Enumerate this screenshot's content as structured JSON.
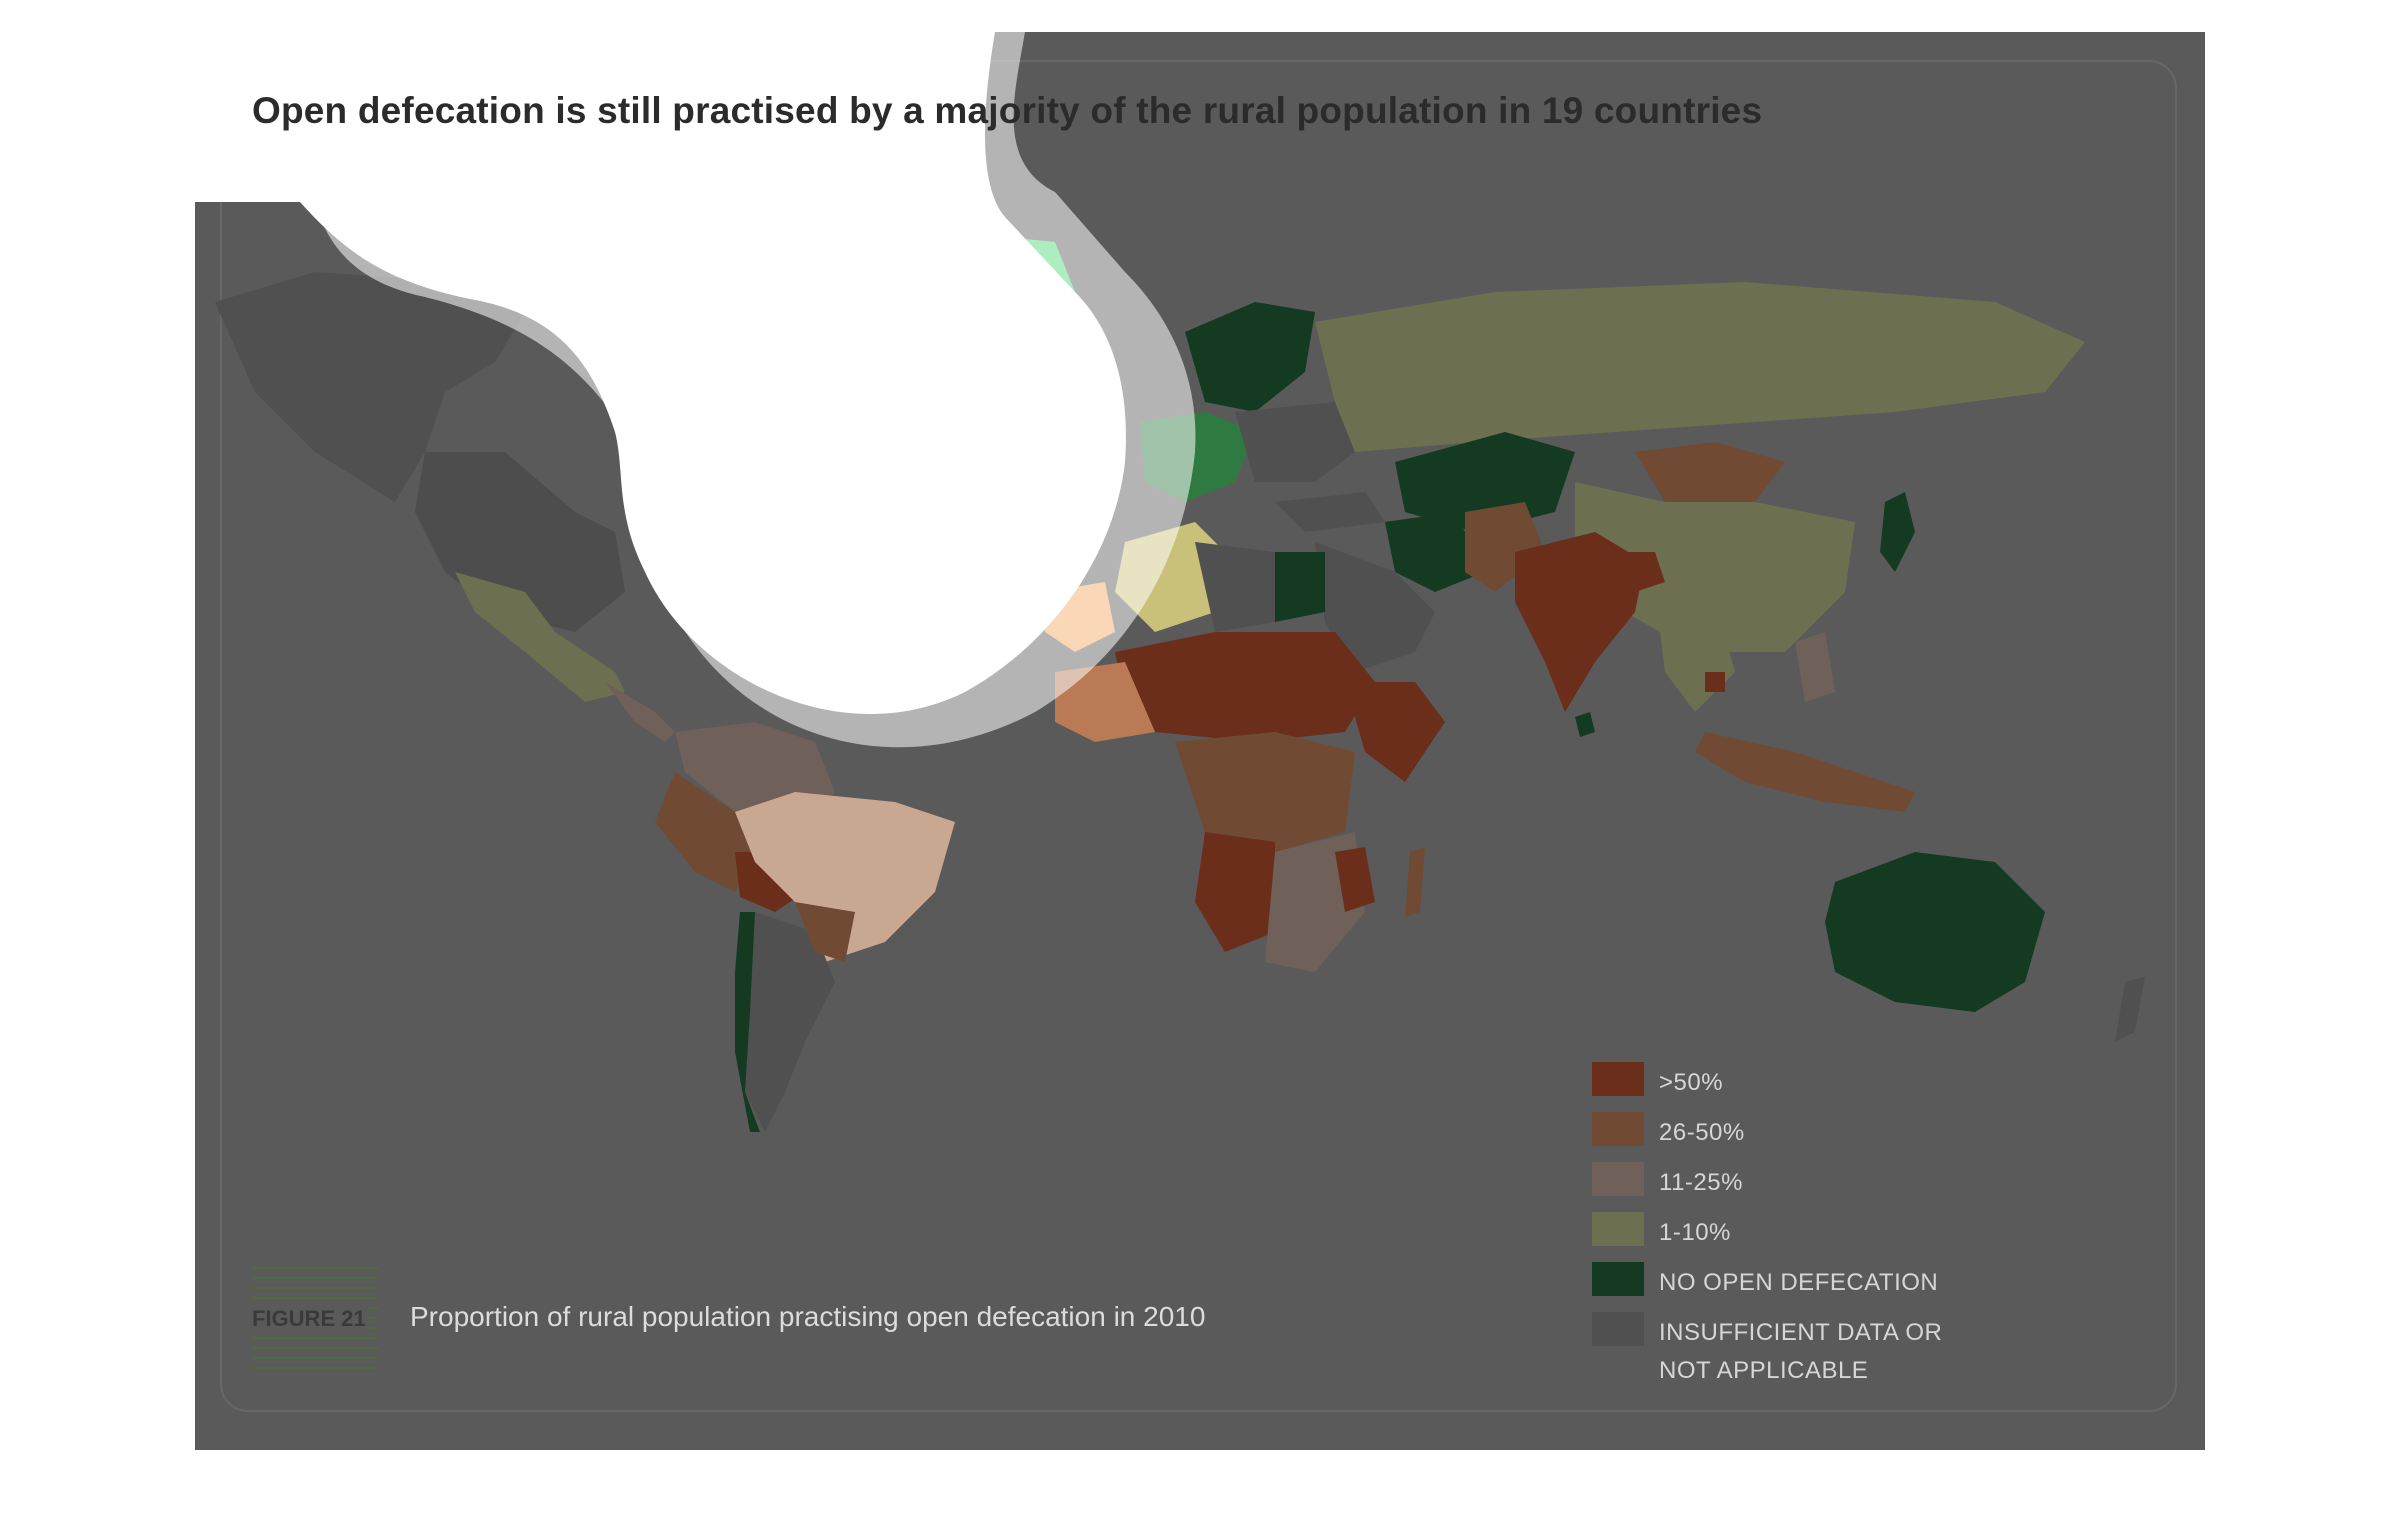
{
  "title": "Open defecation is still practised by a majority of the rural population in 19 countries",
  "figure": {
    "label": "FIGURE 21",
    "caption": "Proportion of rural population practising open defecation in 2010"
  },
  "legend": {
    "items": [
      {
        "label": ">50%",
        "color": "#6b2e1a"
      },
      {
        "label": "26-50%",
        "color": "#704a33"
      },
      {
        "label": "11-25%",
        "color": "#6f605a"
      },
      {
        "label": "1-10%",
        "color": "#6d7050"
      },
      {
        "label": "NO OPEN DEFECATION",
        "color": "#153a22"
      },
      {
        "label": "INSUFFICIENT DATA OR NOT APPLICABLE",
        "color": "#505050"
      }
    ]
  },
  "colors": {
    "background": "#5a5a5a",
    "ocean": "#5a5a5a",
    "glare": "#ffffff"
  }
}
